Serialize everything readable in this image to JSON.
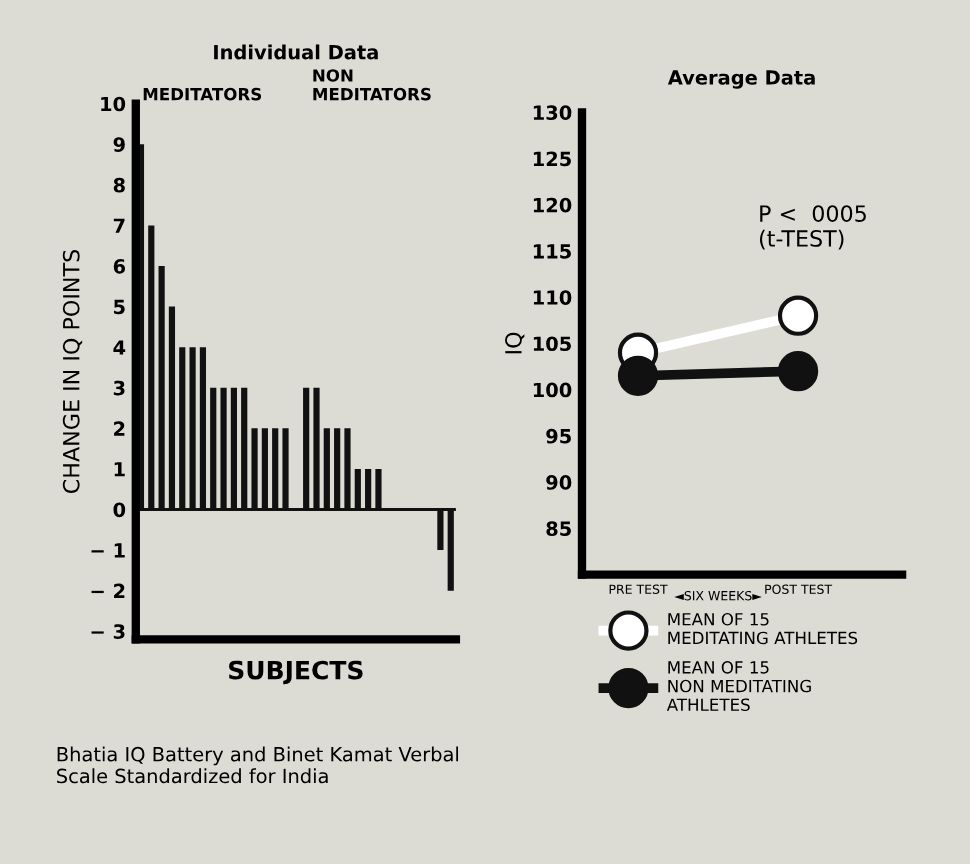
{
  "chart_data": [
    {
      "type": "bar",
      "title": "Individual Data",
      "xlabel": "SUBJECTS",
      "ylabel": "CHANGE IN IQ POINTS",
      "categories": [
        null,
        null,
        null,
        null,
        null,
        null,
        null,
        null,
        null,
        null,
        null,
        null,
        null,
        null,
        null,
        null,
        null,
        null,
        null,
        null,
        null,
        null,
        null,
        null,
        null,
        null,
        null,
        null,
        null,
        null,
        null
      ],
      "values": [
        9,
        7,
        6,
        5,
        4,
        4,
        4,
        3,
        3,
        3,
        3,
        2,
        2,
        2,
        2,
        null,
        3,
        3,
        2,
        2,
        2,
        1,
        1,
        1,
        0,
        0,
        0,
        0,
        0,
        -1,
        -2
      ],
      "color": "#111111",
      "ref_lines": [
        {
          "axis": "y",
          "value": 0
        }
      ],
      "ylim": [
        -3.2,
        10
      ],
      "yticks": [
        {
          "value": 10,
          "label": "10"
        },
        9,
        8,
        7,
        6,
        5,
        4,
        3,
        2,
        1,
        0,
        {
          "value": -1,
          "label": "− 1"
        },
        {
          "value": -2,
          "label": "− 2"
        },
        {
          "value": -3,
          "label": "− 3"
        }
      ],
      "grid": false,
      "annotations": [
        "MEDITATORS",
        "NON\nMEDITATORS",
        "Bhatia IQ Battery and Binet Kamat Verbal\nScale Standardized for India"
      ]
    },
    {
      "type": "line",
      "title": "Average Data",
      "ylabel": "IQ",
      "categories": [
        "PRE TEST",
        "POST TEST"
      ],
      "series": [
        {
          "name": "MEAN OF 15\nMEDITATING ATHLETES",
          "color": "#ffffff",
          "values": [
            104,
            108
          ]
        },
        {
          "name": "MEAN OF 15\nNON MEDITATING\nATHLETES",
          "color": "#111111",
          "values": [
            101.5,
            102
          ]
        }
      ],
      "ylim": [
        80,
        130
      ],
      "yticks": [
        85,
        90,
        95,
        100,
        105,
        110,
        115,
        120,
        125,
        130
      ],
      "marker": "circle",
      "legend": "bottom",
      "grid": false,
      "annotations": [
        "◄SIX WEEKS►",
        "P <  0005\n(t-TEST)"
      ]
    }
  ]
}
